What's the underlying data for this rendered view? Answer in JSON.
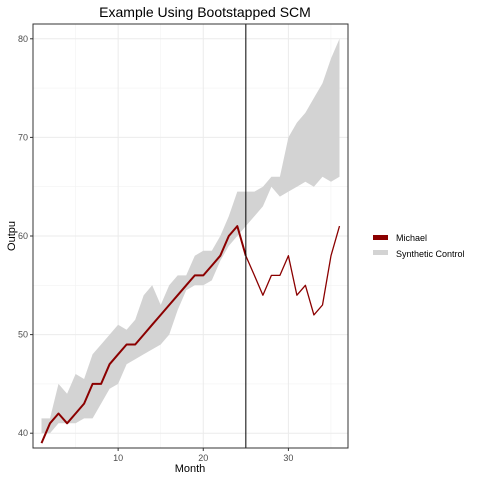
{
  "chart_data": {
    "type": "line",
    "title": "Example Using Bootstapped SCM",
    "xlabel": "Month",
    "ylabel": "Outpu",
    "xlim": [
      0,
      37
    ],
    "ylim": [
      38.5,
      81.5
    ],
    "x_ticks": [
      10,
      20,
      30
    ],
    "y_ticks": [
      40,
      50,
      60,
      70,
      80
    ],
    "grid": true,
    "legend_position": "right",
    "intervention_x": 25,
    "series": [
      {
        "name": "Michael",
        "kind": "line",
        "color": "#8B0000",
        "x": [
          1,
          2,
          3,
          4,
          5,
          6,
          7,
          8,
          9,
          10,
          11,
          12,
          13,
          14,
          15,
          16,
          17,
          18,
          19,
          20,
          21,
          22,
          23,
          24,
          25,
          26,
          27,
          28,
          29,
          30,
          31,
          32,
          33,
          34,
          35,
          36
        ],
        "y": [
          39,
          41,
          42,
          41,
          42,
          43,
          45,
          45,
          47,
          48,
          49,
          49,
          50,
          51,
          52,
          53,
          54,
          55,
          56,
          56,
          57,
          58,
          60,
          61,
          58,
          56,
          54,
          56,
          56,
          58,
          54,
          55,
          52,
          53,
          58,
          61
        ]
      },
      {
        "name": "Synthetic Control",
        "kind": "band",
        "color": "#d3d3d3",
        "x": [
          1,
          2,
          3,
          4,
          5,
          6,
          7,
          8,
          9,
          10,
          11,
          12,
          13,
          14,
          15,
          16,
          17,
          18,
          19,
          20,
          21,
          22,
          23,
          24,
          25,
          26,
          27,
          28,
          29,
          30,
          31,
          32,
          33,
          34,
          35,
          36
        ],
        "lower": [
          40,
          40,
          41,
          41,
          41,
          41.5,
          41.5,
          43,
          44.5,
          45,
          47,
          47.5,
          48,
          48.5,
          49,
          50,
          52.5,
          54.5,
          55,
          55,
          55.5,
          57.5,
          59,
          60,
          61,
          62,
          63,
          65,
          64,
          64.5,
          65,
          65.5,
          65,
          66,
          65.5,
          66
        ],
        "upper": [
          41.5,
          41.5,
          45,
          44,
          46,
          45.5,
          48,
          49,
          50,
          51,
          50.5,
          51.5,
          54,
          55,
          53,
          55,
          56,
          56,
          58,
          58.5,
          58.5,
          60,
          62,
          64.5,
          64.5,
          64.5,
          65,
          66,
          66,
          70,
          71.5,
          72.5,
          74,
          75.5,
          78,
          80
        ]
      }
    ]
  }
}
